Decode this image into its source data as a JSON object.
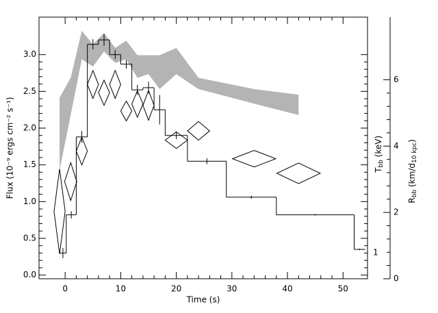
{
  "chart_data": {
    "type": "step",
    "x_label": "Time (s)",
    "y_label": "Flux (10⁻⁹ ergs cm⁻² s⁻¹)",
    "y2_label_t": {
      "symbol": "T",
      "subscript": "bb",
      "unit": "(keV)"
    },
    "y2_label_r": {
      "symbol": "R",
      "subscript": "bb",
      "unit": "(km/d",
      "unit_subscript": "10 kpc",
      "close": ")"
    },
    "annotation": "1",
    "xlim": [
      -4.7,
      54.4
    ],
    "xticks": [
      0,
      10,
      20,
      30,
      40,
      50
    ],
    "ylim": [
      -0.05,
      3.51
    ],
    "yticks": [
      {
        "value": 0,
        "label": "0.0"
      },
      {
        "value": 0.5,
        "label": "0.5"
      },
      {
        "value": 1,
        "label": "1.0"
      },
      {
        "value": 1.5,
        "label": "1.5"
      },
      {
        "value": 2,
        "label": "2.0"
      },
      {
        "value": 2.5,
        "label": "2.5"
      },
      {
        "value": 3,
        "label": "3.0"
      }
    ],
    "y2lim": [
      0,
      7.89
    ],
    "y2ticks": [
      0,
      2,
      4,
      6
    ],
    "flux": {
      "color": "#000000",
      "bins": [
        -1,
        0.2,
        2,
        4,
        6,
        8,
        10,
        12,
        14,
        16,
        18,
        22,
        29,
        38,
        52,
        54
      ],
      "values": [
        0.3,
        0.82,
        1.88,
        3.14,
        3.2,
        3.0,
        2.87,
        2.52,
        2.55,
        2.25,
        1.9,
        1.55,
        1.06,
        0.82,
        0.35
      ],
      "errors": [
        0.07,
        0.05,
        0.08,
        0.07,
        0.08,
        0.06,
        0.06,
        0.07,
        0.08,
        0.2,
        0.05,
        0.04,
        0.02,
        0.01,
        0.01
      ]
    },
    "band": {
      "color": "#b4b4b4",
      "axis": "y2",
      "x": [
        -1,
        1,
        3,
        5,
        7,
        9,
        11,
        13,
        15,
        17,
        20,
        24,
        34,
        42
      ],
      "lower": [
        3.28,
        4.94,
        6.62,
        6.4,
        6.85,
        6.51,
        6.62,
        6.06,
        6.17,
        5.72,
        6.17,
        5.72,
        5.28,
        4.94
      ],
      "upper": [
        5.46,
        6.06,
        7.48,
        7.07,
        7.41,
        6.96,
        7.18,
        6.74,
        6.74,
        6.74,
        6.96,
        6.06,
        5.72,
        5.55
      ]
    },
    "diamonds": {
      "color": "#000000",
      "axis": "y2",
      "x": [
        -1,
        1,
        3,
        5,
        7,
        9,
        11,
        13,
        15,
        20,
        24,
        34,
        42
      ],
      "xerr": [
        1,
        1.1,
        1,
        1,
        1,
        1,
        1,
        1,
        1,
        2,
        2,
        3.9,
        3.9
      ],
      "values": [
        2.03,
        2.93,
        3.85,
        5.86,
        5.61,
        5.86,
        5.06,
        5.27,
        5.23,
        4.18,
        4.46,
        3.62,
        3.18
      ],
      "yerr": [
        1.28,
        0.57,
        0.42,
        0.42,
        0.38,
        0.42,
        0.3,
        0.4,
        0.45,
        0.25,
        0.28,
        0.25,
        0.31
      ]
    }
  }
}
